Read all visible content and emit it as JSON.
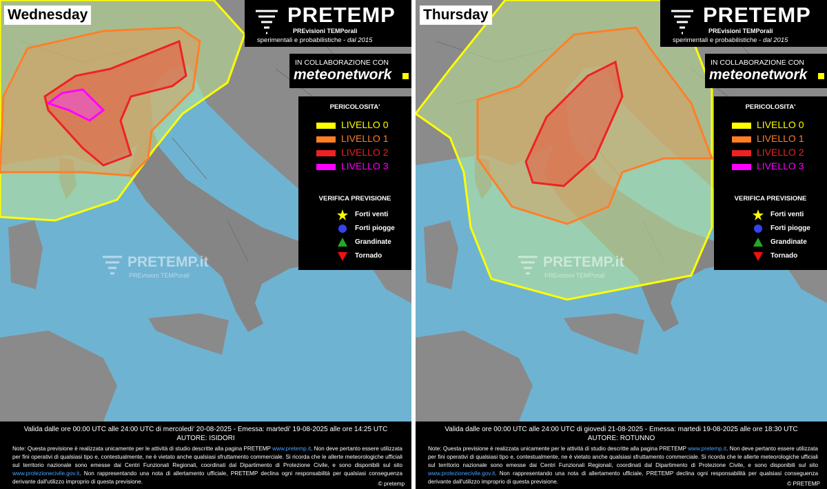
{
  "panels": [
    {
      "day": "Wednesday",
      "logo": {
        "title": "PRETEMP",
        "line1": "PREvisioni TEMPorali",
        "line2": "sperimentali e probabilistiche - ",
        "line2_em": "dal 2015"
      },
      "collab": {
        "label": "IN COLLABORAZIONE CON",
        "brand": "meteonetwork"
      },
      "legend": {
        "title": "PERICOLOSITA'",
        "levels": [
          "LIVELLO 0",
          "LIVELLO 1",
          "LIVELLO 2",
          "LIVELLO 3"
        ]
      },
      "verify": {
        "title": "VERIFICA PREVISIONE",
        "items": [
          "Forti venti",
          "Forti piogge",
          "Grandinate",
          "Tornado"
        ]
      },
      "watermark": {
        "title": "PRETEMP.it",
        "subtitle": "PREvisioni TEMPorali"
      },
      "footer": {
        "validity": "Valida dalle ore 00:00 UTC alle 24:00 UTC di mercoledi' 20-08-2025 - Emessa: martedi' 19-08-2025 alle ore 14:25 UTC",
        "author": "AUTORE: ISIDORI",
        "note": [
          "Note: Questa previsione è realizzata unicamente per le attività di studio descritte alla pagina PRETEMP ",
          "www.pretemp.it",
          ". Non deve pertanto essere utilizzata per fini operativi di qualsiasi tipo e, contestualmente, ne è vietato anche qualsiasi sfruttamento commerciale. Si ricorda che le allerte meteorologiche ufficiali sul territorio nazionale sono emesse dai Centri Funzionali Regionali, coordinati dal Dipartimento di Protezione Civile, e sono disponibili sul sito ",
          "www.protezionecivile.gov.it",
          ". Non rappresentando una nota di allertamento ufficiale, PRETEMP declina ogni responsabilità per qualsiasi conseguenza derivante dall'utilizzo improprio di questa previsione."
        ],
        "copyright": "© pretemp"
      }
    },
    {
      "day": "Thursday",
      "logo": {
        "title": "PRETEMP",
        "line1": "PREvisioni TEMPorali",
        "line2": "sperimentali e probabilistiche - ",
        "line2_em": "dal 2015"
      },
      "collab": {
        "label": "IN COLLABORAZIONE CON",
        "brand": "meteonetwork"
      },
      "legend": {
        "title": "PERICOLOSITA'",
        "levels": [
          "LIVELLO 0",
          "LIVELLO 1",
          "LIVELLO 2",
          "LIVELLO 3"
        ]
      },
      "verify": {
        "title": "VERIFICA PREVISIONE",
        "items": [
          "Forti venti",
          "Forti piogge",
          "Grandinate",
          "Tornado"
        ]
      },
      "watermark": {
        "title": "PRETEMP.it",
        "subtitle": "PREvisioni TEMPorali"
      },
      "footer": {
        "validity": "Valida dalle ore 00:00 UTC alle 24:00 UTC di giovedi 21-08-2025 - Emessa: martedi 19-08-2025 alle ore 18:30 UTC",
        "author": "AUTORE: ROTUNNO",
        "note": [
          "Note: Questa previsione è realizzata unicamente per le attività di studio descritte alla pagina PRETEMP ",
          "www.pretemp.it",
          ". Non deve pertanto essere utilizzata per fini operativi di qualsiasi tipo e, contestualmente, ne è vietato anche qualsiasi sfruttamento commerciale. Si ricorda che le allerte meteorologiche ufficiali sul territorio nazionale sono emesse dai Centri Funzionali Regionali, coordinati dal Dipartimento di Protezione Civile, e sono disponibili sul sito ",
          "www.protezionecivile.gov.it",
          ". Non rappresentando una nota di allertamento ufficiale, PRETEMP declina ogni responsabilità per qualsiasi conseguenza derivante dall'utilizzo improprio di questa previsione."
        ],
        "copyright": "© PRETEMP"
      }
    }
  ]
}
